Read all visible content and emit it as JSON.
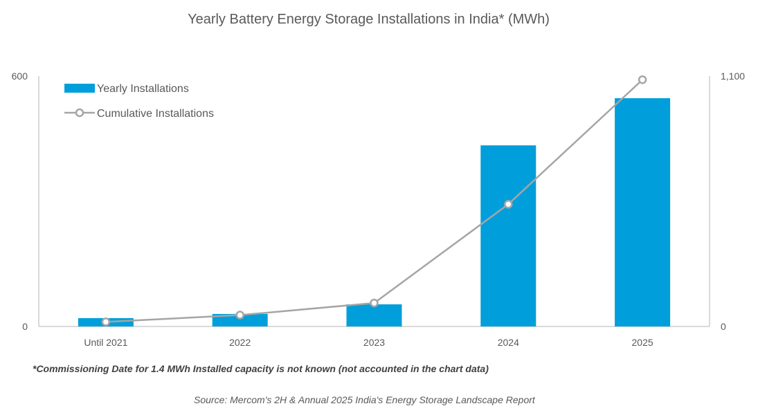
{
  "chart_data": {
    "type": "bar",
    "title": "Yearly Battery Energy Storage Installations in India* (MWh)",
    "categories": [
      "Until 2021",
      "2022",
      "2023",
      "2024",
      "2025"
    ],
    "series": [
      {
        "name": "Yearly Installations",
        "type": "bar",
        "axis": "left",
        "color": "#009FDB",
        "values": [
          20,
          30,
          53,
          434,
          547
        ]
      },
      {
        "name": "Cumulative Installations",
        "type": "line",
        "axis": "right",
        "color": "#A5A5A5",
        "values": [
          20,
          50,
          103,
          537,
          1084
        ]
      }
    ],
    "left_axis": {
      "ylim": [
        0,
        600
      ],
      "ticks": [
        "0",
        "600"
      ]
    },
    "right_axis": {
      "ylim": [
        0,
        1100
      ],
      "ticks": [
        "0",
        "1,100"
      ]
    },
    "xlabel": "",
    "ylabel": "",
    "grid": false,
    "legend_position": "top-left",
    "footnote": "*Commissioning Date for 1.4 MWh Installed capacity is not known (not accounted in the chart data)",
    "source": "Source: Mercom's 2H & Annual 2025 India's Energy Storage Landscape Report"
  }
}
